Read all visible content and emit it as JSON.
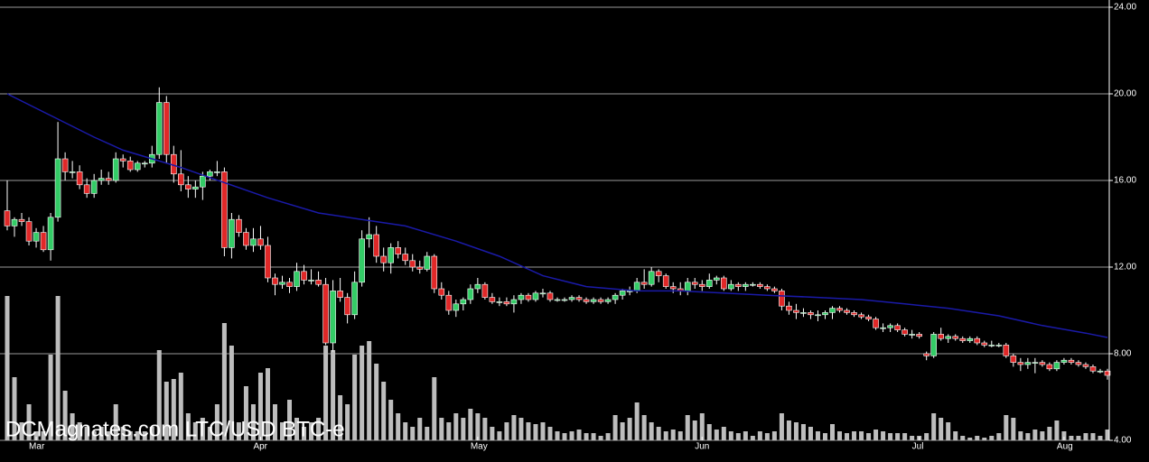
{
  "chart_data": {
    "type": "candlestick",
    "title": "DCMagnates.com LTC/USD BTC-e",
    "xlim": [
      0,
      152
    ],
    "xticks": [
      {
        "value": 4,
        "label": "Mar"
      },
      {
        "value": 35,
        "label": "Apr"
      },
      {
        "value": 65,
        "label": "May"
      },
      {
        "value": 96,
        "label": "Jun"
      },
      {
        "value": 126,
        "label": "Jul"
      },
      {
        "value": 146,
        "label": "Aug"
      }
    ],
    "ylim": [
      4,
      24
    ],
    "yticks": [
      {
        "value": 4,
        "label": "4.00"
      },
      {
        "value": 8,
        "label": "8.00"
      },
      {
        "value": 12,
        "label": "12.00"
      },
      {
        "value": 16,
        "label": "16.00"
      },
      {
        "value": 20,
        "label": "20.00"
      },
      {
        "value": 24,
        "label": "24.00"
      }
    ],
    "grid": true,
    "up_color": "#33cc66",
    "down_color": "#e02828",
    "wick_color": "#ffffff",
    "volume_color": "#bdbdbd",
    "ma_color": "#1a1aa8",
    "open": [
      14.6,
      13.9,
      14.2,
      14.1,
      13.2,
      13.6,
      12.8,
      14.3,
      17.0,
      16.4,
      16.4,
      15.8,
      15.4,
      16.0,
      16.1,
      16.0,
      17.0,
      16.9,
      16.5,
      16.8,
      16.8,
      17.2,
      19.6,
      17.2,
      16.3,
      15.8,
      15.6,
      15.7,
      16.2,
      16.4,
      16.4,
      12.9,
      14.2,
      13.6,
      13.0,
      13.3,
      13.0,
      11.5,
      11.2,
      11.3,
      11.1,
      11.8,
      11.4,
      11.4,
      11.2,
      8.5,
      10.9,
      10.6,
      9.8,
      11.3,
      13.3,
      13.5,
      12.5,
      12.2,
      12.9,
      12.6,
      12.3,
      12.0,
      11.9,
      12.5,
      11.0,
      10.7,
      10.0,
      10.3,
      10.5,
      11.0,
      11.2,
      10.6,
      10.4,
      10.4,
      10.3,
      10.5,
      10.7,
      10.5,
      10.8,
      10.8,
      10.5,
      10.5,
      10.5,
      10.6,
      10.5,
      10.4,
      10.5,
      10.4,
      10.5,
      10.7,
      10.9,
      10.9,
      11.3,
      11.2,
      11.8,
      11.6,
      11.1,
      11.0,
      10.9,
      11.3,
      11.2,
      11.1,
      11.4,
      11.5,
      11.0,
      11.2,
      11.1,
      11.2,
      11.2,
      11.1,
      11.0,
      10.9,
      10.2,
      10.0,
      9.9,
      9.9,
      9.8,
      9.8,
      9.9,
      10.1,
      10.0,
      9.9,
      9.8,
      9.7,
      9.6,
      9.2,
      9.2,
      9.3,
      9.1,
      8.9,
      8.9,
      8.0,
      7.9,
      8.9,
      8.7,
      8.8,
      8.7,
      8.6,
      8.7,
      8.5,
      8.4,
      8.4,
      8.4,
      7.9,
      7.6,
      7.5,
      7.6,
      7.6,
      7.5,
      7.3,
      7.6,
      7.7,
      7.6,
      7.5,
      7.4,
      7.2,
      7.2
    ],
    "high": [
      16.0,
      14.3,
      14.5,
      14.3,
      13.8,
      13.9,
      14.5,
      18.7,
      17.3,
      16.9,
      16.7,
      16.1,
      16.3,
      16.5,
      16.4,
      17.3,
      17.2,
      17.1,
      16.9,
      16.9,
      17.6,
      20.3,
      19.9,
      17.6,
      17.4,
      16.2,
      16.0,
      16.4,
      16.5,
      16.9,
      16.6,
      14.5,
      14.4,
      13.8,
      13.8,
      13.9,
      13.4,
      11.7,
      11.6,
      11.5,
      12.2,
      12.1,
      11.9,
      11.8,
      11.5,
      11.4,
      11.5,
      10.8,
      11.8,
      13.7,
      14.3,
      13.9,
      12.9,
      13.1,
      13.2,
      12.9,
      12.6,
      12.3,
      12.7,
      12.6,
      11.3,
      10.9,
      10.5,
      10.6,
      11.2,
      11.5,
      11.3,
      10.8,
      10.6,
      10.6,
      10.7,
      10.8,
      10.8,
      10.9,
      11.0,
      10.9,
      10.6,
      10.6,
      10.7,
      10.7,
      10.6,
      10.6,
      10.6,
      10.6,
      10.8,
      11.0,
      11.1,
      11.5,
      11.9,
      12.0,
      11.9,
      11.7,
      11.3,
      11.3,
      11.5,
      11.5,
      11.4,
      11.7,
      11.6,
      11.6,
      11.4,
      11.3,
      11.3,
      11.3,
      11.3,
      11.2,
      11.1,
      11.0,
      10.4,
      10.3,
      10.1,
      10.0,
      10.0,
      10.0,
      10.2,
      10.2,
      10.1,
      10.0,
      9.9,
      9.8,
      9.7,
      9.4,
      9.4,
      9.4,
      9.2,
      9.1,
      9.0,
      8.1,
      9.0,
      9.2,
      8.9,
      8.9,
      8.8,
      8.8,
      8.8,
      8.6,
      8.6,
      8.5,
      8.5,
      8.0,
      7.8,
      7.8,
      7.8,
      7.7,
      7.6,
      7.7,
      7.8,
      7.8,
      7.7,
      7.6,
      7.5,
      7.3,
      7.3
    ],
    "low": [
      13.7,
      13.4,
      13.9,
      13.0,
      12.9,
      12.7,
      12.3,
      14.1,
      16.0,
      16.1,
      15.6,
      15.2,
      15.2,
      15.8,
      15.8,
      15.9,
      16.6,
      16.4,
      16.4,
      16.6,
      16.6,
      17.0,
      16.8,
      15.9,
      15.5,
      15.2,
      15.2,
      15.1,
      16.0,
      16.2,
      12.5,
      12.4,
      13.4,
      12.8,
      12.7,
      12.8,
      11.3,
      10.7,
      11.0,
      10.8,
      10.9,
      11.2,
      11.2,
      11.1,
      8.4,
      8.1,
      10.4,
      9.4,
      9.6,
      11.1,
      12.9,
      12.2,
      11.8,
      11.7,
      12.4,
      12.1,
      11.8,
      11.7,
      11.8,
      10.8,
      10.5,
      9.8,
      9.7,
      10.0,
      10.3,
      10.8,
      10.5,
      10.3,
      10.2,
      10.2,
      9.9,
      10.3,
      10.4,
      10.4,
      10.6,
      10.4,
      10.4,
      10.4,
      10.4,
      10.4,
      10.3,
      10.3,
      10.3,
      10.3,
      10.3,
      10.5,
      10.7,
      10.8,
      11.0,
      11.1,
      11.3,
      11.0,
      10.8,
      10.7,
      10.7,
      11.0,
      10.9,
      11.0,
      11.2,
      10.9,
      10.9,
      10.9,
      10.9,
      11.1,
      11.0,
      10.9,
      10.8,
      10.0,
      9.8,
      9.6,
      9.7,
      9.6,
      9.5,
      9.6,
      9.6,
      9.9,
      9.8,
      9.7,
      9.6,
      9.5,
      9.1,
      9.0,
      9.0,
      9.0,
      8.8,
      8.7,
      8.7,
      7.7,
      7.8,
      8.6,
      8.5,
      8.6,
      8.5,
      8.5,
      8.4,
      8.3,
      8.3,
      8.3,
      7.8,
      7.4,
      7.2,
      7.3,
      7.1,
      7.4,
      7.2,
      7.2,
      7.5,
      7.5,
      7.4,
      7.3,
      7.1,
      7.1,
      6.8
    ],
    "close": [
      13.9,
      14.2,
      14.1,
      13.2,
      13.6,
      12.8,
      14.3,
      17.0,
      16.4,
      16.4,
      15.8,
      15.4,
      16.0,
      16.1,
      16.0,
      17.0,
      16.9,
      16.5,
      16.8,
      16.8,
      17.2,
      19.6,
      17.2,
      16.3,
      15.8,
      15.6,
      15.7,
      16.2,
      16.4,
      16.4,
      12.9,
      14.2,
      13.6,
      13.0,
      13.3,
      13.0,
      11.5,
      11.2,
      11.3,
      11.1,
      11.8,
      11.4,
      11.4,
      11.2,
      8.5,
      10.9,
      10.6,
      9.8,
      11.3,
      13.3,
      13.5,
      12.5,
      12.2,
      12.9,
      12.6,
      12.3,
      12.0,
      11.9,
      12.5,
      11.0,
      10.7,
      10.0,
      10.3,
      10.5,
      11.0,
      11.2,
      10.6,
      10.4,
      10.4,
      10.3,
      10.5,
      10.7,
      10.5,
      10.8,
      10.8,
      10.5,
      10.5,
      10.5,
      10.6,
      10.5,
      10.4,
      10.5,
      10.4,
      10.5,
      10.7,
      10.9,
      10.9,
      11.3,
      11.2,
      11.8,
      11.6,
      11.1,
      11.0,
      10.9,
      11.3,
      11.2,
      11.1,
      11.4,
      11.5,
      11.0,
      11.2,
      11.1,
      11.2,
      11.2,
      11.1,
      11.0,
      10.9,
      10.2,
      10.0,
      9.9,
      9.9,
      9.8,
      9.8,
      9.9,
      10.1,
      10.0,
      9.9,
      9.8,
      9.7,
      9.6,
      9.2,
      9.2,
      9.3,
      9.1,
      8.9,
      8.9,
      8.8,
      7.9,
      8.9,
      8.7,
      8.8,
      8.7,
      8.6,
      8.7,
      8.5,
      8.4,
      8.4,
      8.4,
      7.9,
      7.6,
      7.5,
      7.6,
      7.6,
      7.5,
      7.3,
      7.6,
      7.7,
      7.6,
      7.5,
      7.4,
      7.2,
      7.2,
      7.0
    ],
    "volume_lim": [
      0,
      160
    ],
    "volume": [
      160,
      70,
      20,
      40,
      10,
      10,
      95,
      160,
      55,
      30,
      20,
      15,
      10,
      15,
      10,
      40,
      15,
      10,
      10,
      10,
      15,
      100,
      65,
      68,
      75,
      30,
      20,
      25,
      15,
      40,
      130,
      105,
      20,
      60,
      40,
      75,
      80,
      40,
      20,
      45,
      25,
      15,
      20,
      25,
      105,
      100,
      50,
      40,
      95,
      105,
      110,
      85,
      65,
      45,
      30,
      20,
      15,
      25,
      15,
      70,
      25,
      20,
      30,
      25,
      35,
      30,
      25,
      15,
      10,
      20,
      28,
      25,
      20,
      18,
      20,
      15,
      10,
      8,
      10,
      12,
      8,
      8,
      5,
      8,
      28,
      20,
      25,
      42,
      28,
      20,
      15,
      10,
      12,
      10,
      28,
      22,
      30,
      18,
      12,
      15,
      10,
      8,
      10,
      5,
      10,
      8,
      10,
      30,
      22,
      20,
      18,
      15,
      10,
      8,
      18,
      10,
      8,
      10,
      10,
      8,
      12,
      10,
      8,
      8,
      8,
      5,
      5,
      8,
      30,
      25,
      20,
      10,
      5,
      3,
      5,
      3,
      5,
      8,
      28,
      25,
      10,
      8,
      12,
      10,
      15,
      22,
      10,
      5,
      5,
      8,
      8,
      5,
      12
    ],
    "ma": {
      "x": [
        0,
        6,
        12,
        16,
        24,
        30,
        36,
        43,
        49,
        55,
        62,
        68,
        74,
        80,
        87,
        93,
        99,
        105,
        112,
        118,
        124,
        130,
        137,
        143,
        149,
        152
      ],
      "values": [
        20.0,
        19.0,
        18.0,
        17.4,
        16.6,
        15.9,
        15.2,
        14.5,
        14.2,
        13.9,
        13.2,
        12.5,
        11.6,
        11.1,
        10.9,
        10.9,
        10.8,
        10.7,
        10.6,
        10.5,
        10.3,
        10.1,
        9.75,
        9.3,
        8.95,
        8.75
      ]
    }
  }
}
